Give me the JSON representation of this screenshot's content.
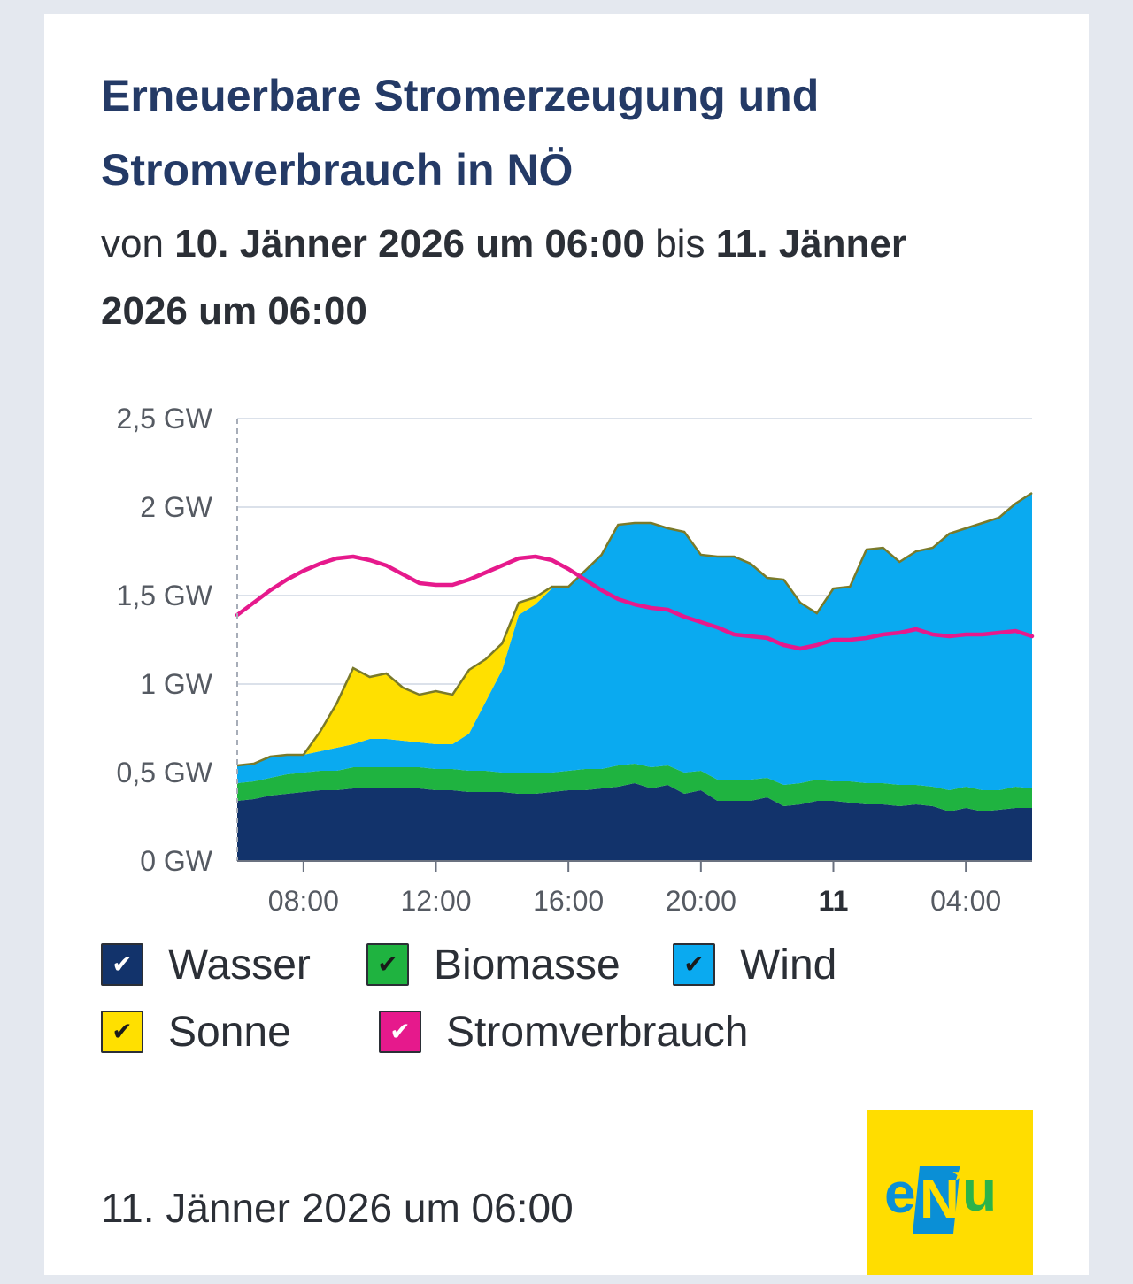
{
  "title_line1": "Erneuerbare Stromerzeugung und",
  "title_line2": "Stromverbrauch in NÖ",
  "subtitle": {
    "prefix": "von",
    "from": "10. Jänner 2026 um 06:00",
    "middle": "bis",
    "to": "11. Jänner 2026 um 06:00"
  },
  "footer_date": "11. Jänner 2026 um 06:00",
  "logo": {
    "text_e": "e",
    "text_n": "N",
    "text_u": "u"
  },
  "legend": [
    {
      "label": "Wasser",
      "color": "#12336b",
      "check": "✔",
      "check_color": "#ffffff"
    },
    {
      "label": "Biomasse",
      "color": "#1fb340",
      "check": "✔",
      "check_color": "#1a1a1a"
    },
    {
      "label": "Wind",
      "color": "#0aaaf0",
      "check": "✔",
      "check_color": "#1a1a1a"
    },
    {
      "label": "Sonne",
      "color": "#ffe000",
      "check": "✔",
      "check_color": "#1a1a1a"
    },
    {
      "label": "Stromverbrauch",
      "color": "#e6198c",
      "check": "✔",
      "check_color": "#ffffff"
    }
  ],
  "chart_data": {
    "type": "area",
    "stacked": true,
    "title": "Erneuerbare Stromerzeugung und Stromverbrauch in NÖ",
    "xlabel": "",
    "ylabel": "",
    "x_unit": "hours since 10. Jänner 2026 06:00",
    "x": [
      0,
      0.5,
      1,
      1.5,
      2,
      2.5,
      3,
      3.5,
      4,
      4.5,
      5,
      5.5,
      6,
      6.5,
      7,
      7.5,
      8,
      8.5,
      9,
      9.5,
      10,
      10.5,
      11,
      11.5,
      12,
      12.5,
      13,
      13.5,
      14,
      14.5,
      15,
      15.5,
      16,
      16.5,
      17,
      17.5,
      18,
      18.5,
      19,
      19.5,
      20,
      20.5,
      21,
      21.5,
      22,
      22.5,
      23,
      23.5,
      24
    ],
    "xlim": [
      0,
      24
    ],
    "ylim": [
      0,
      2.5
    ],
    "y_ticks": [
      {
        "value": 0,
        "label": "0 GW"
      },
      {
        "value": 0.5,
        "label": "0,5 GW"
      },
      {
        "value": 1,
        "label": "1 GW"
      },
      {
        "value": 1.5,
        "label": "1,5 GW"
      },
      {
        "value": 2,
        "label": "2 GW"
      },
      {
        "value": 2.5,
        "label": "2,5 GW"
      }
    ],
    "x_ticks": [
      {
        "value": 2,
        "label": "08:00",
        "bold": false
      },
      {
        "value": 6,
        "label": "12:00",
        "bold": false
      },
      {
        "value": 10,
        "label": "16:00",
        "bold": false
      },
      {
        "value": 14,
        "label": "20:00",
        "bold": false
      },
      {
        "value": 18,
        "label": "11",
        "bold": true
      },
      {
        "value": 22,
        "label": "04:00",
        "bold": false
      }
    ],
    "series": [
      {
        "name": "Wasser",
        "color": "#12336b",
        "values": [
          0.34,
          0.35,
          0.37,
          0.38,
          0.39,
          0.4,
          0.4,
          0.41,
          0.41,
          0.41,
          0.41,
          0.41,
          0.4,
          0.4,
          0.39,
          0.39,
          0.39,
          0.38,
          0.38,
          0.39,
          0.4,
          0.4,
          0.41,
          0.42,
          0.44,
          0.41,
          0.43,
          0.38,
          0.4,
          0.34,
          0.34,
          0.34,
          0.36,
          0.31,
          0.32,
          0.34,
          0.34,
          0.33,
          0.32,
          0.32,
          0.31,
          0.32,
          0.31,
          0.28,
          0.3,
          0.28,
          0.29,
          0.3,
          0.3
        ]
      },
      {
        "name": "Biomasse",
        "color": "#1fb340",
        "values": [
          0.1,
          0.1,
          0.1,
          0.11,
          0.11,
          0.11,
          0.11,
          0.12,
          0.12,
          0.12,
          0.12,
          0.12,
          0.12,
          0.12,
          0.12,
          0.12,
          0.11,
          0.12,
          0.12,
          0.11,
          0.11,
          0.12,
          0.11,
          0.12,
          0.11,
          0.12,
          0.11,
          0.12,
          0.11,
          0.12,
          0.12,
          0.12,
          0.11,
          0.12,
          0.12,
          0.12,
          0.11,
          0.12,
          0.12,
          0.12,
          0.12,
          0.11,
          0.11,
          0.12,
          0.12,
          0.12,
          0.11,
          0.12,
          0.11
        ]
      },
      {
        "name": "Wind",
        "color": "#0aaaf0",
        "values": [
          0.1,
          0.1,
          0.12,
          0.11,
          0.1,
          0.11,
          0.13,
          0.13,
          0.16,
          0.16,
          0.15,
          0.14,
          0.14,
          0.14,
          0.21,
          0.39,
          0.58,
          0.89,
          0.95,
          1.04,
          1.04,
          1.12,
          1.21,
          1.36,
          1.36,
          1.38,
          1.34,
          1.36,
          1.22,
          1.26,
          1.26,
          1.22,
          1.13,
          1.16,
          1.02,
          0.94,
          1.09,
          1.1,
          1.32,
          1.33,
          1.26,
          1.32,
          1.35,
          1.45,
          1.46,
          1.51,
          1.54,
          1.6,
          1.67
        ]
      },
      {
        "name": "Sonne",
        "color": "#ffe000",
        "values": [
          0,
          0,
          0,
          0,
          0,
          0.11,
          0.25,
          0.43,
          0.35,
          0.37,
          0.3,
          0.27,
          0.3,
          0.28,
          0.36,
          0.24,
          0.15,
          0.07,
          0.04,
          0.01,
          0,
          0,
          0,
          0,
          0,
          0,
          0,
          0,
          0,
          0,
          0,
          0,
          0,
          0,
          0,
          0,
          0,
          0,
          0,
          0,
          0,
          0,
          0,
          0,
          0,
          0,
          0,
          0,
          0
        ]
      }
    ],
    "line_series": [
      {
        "name": "Stromverbrauch",
        "color": "#e6198c",
        "values": [
          1.39,
          1.46,
          1.53,
          1.59,
          1.64,
          1.68,
          1.71,
          1.72,
          1.7,
          1.67,
          1.62,
          1.57,
          1.56,
          1.56,
          1.59,
          1.63,
          1.67,
          1.71,
          1.72,
          1.7,
          1.65,
          1.59,
          1.53,
          1.48,
          1.45,
          1.43,
          1.42,
          1.38,
          1.35,
          1.32,
          1.28,
          1.27,
          1.26,
          1.22,
          1.2,
          1.22,
          1.25,
          1.25,
          1.26,
          1.28,
          1.29,
          1.31,
          1.28,
          1.27,
          1.28,
          1.28,
          1.29,
          1.3,
          1.27
        ]
      }
    ]
  }
}
